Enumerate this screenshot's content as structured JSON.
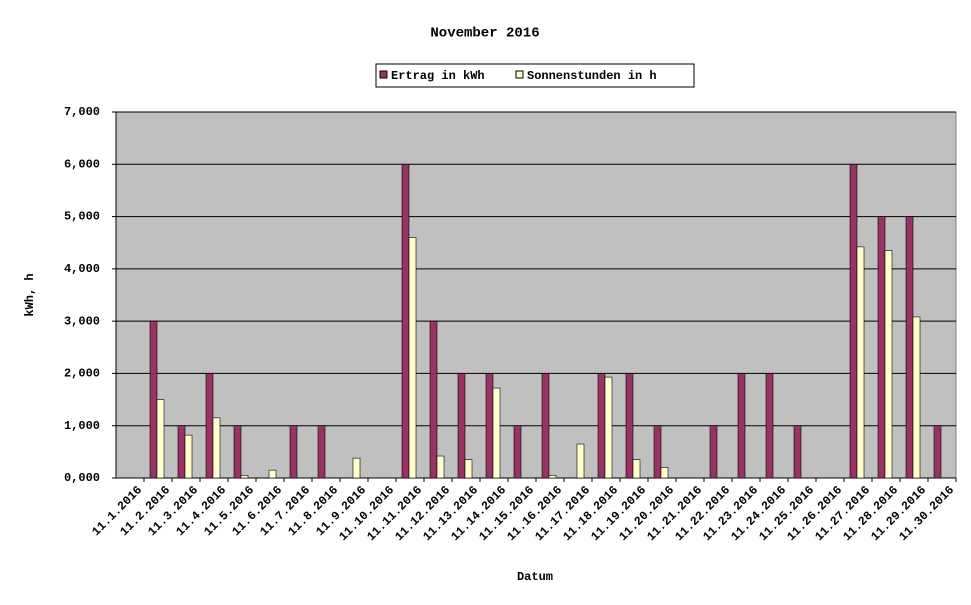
{
  "chart_data": {
    "type": "bar",
    "title": "November 2016",
    "x_label": "Datum",
    "y_label": "kWh, h",
    "categories": [
      "11.1.2016",
      "11.2.2016",
      "11.3.2016",
      "11.4.2016",
      "11.5.2016",
      "11.6.2016",
      "11.7.2016",
      "11.8.2016",
      "11.9.2016",
      "11.10.2016",
      "11.11.2016",
      "11.12.2016",
      "11.13.2016",
      "11.14.2016",
      "11.15.2016",
      "11.16.2016",
      "11.17.2016",
      "11.18.2016",
      "11.19.2016",
      "11.20.2016",
      "11.21.2016",
      "11.22.2016",
      "11.23.2016",
      "11.24.2016",
      "11.25.2016",
      "11.26.2016",
      "11.27.2016",
      "11.28.2016",
      "11.29.2016",
      "11.30.2016"
    ],
    "series": [
      {
        "name": "Ertrag in kWh",
        "color": "#993366",
        "values": [
          0,
          3,
          1,
          2,
          1,
          0,
          1,
          1,
          0,
          0,
          6,
          3,
          2,
          2,
          1,
          2,
          0,
          2,
          2,
          1,
          0,
          1,
          2,
          2,
          1,
          0,
          6,
          5,
          5,
          1
        ]
      },
      {
        "name": "Sonnenstunden in h",
        "color": "#ffffcc",
        "values": [
          0,
          1.5,
          0.82,
          1.15,
          0.05,
          0.15,
          0,
          0,
          0.38,
          0,
          4.6,
          0.42,
          0.35,
          1.72,
          0,
          0.05,
          0.65,
          1.93,
          0.35,
          0.2,
          0,
          0,
          0,
          0,
          0,
          0,
          4.42,
          4.35,
          3.08,
          0
        ]
      }
    ],
    "ylim": [
      0,
      7
    ],
    "yticks": [
      {
        "value": 0,
        "label": "0,000"
      },
      {
        "value": 1,
        "label": "1,000"
      },
      {
        "value": 2,
        "label": "2,000"
      },
      {
        "value": 3,
        "label": "3,000"
      },
      {
        "value": 4,
        "label": "4,000"
      },
      {
        "value": 5,
        "label": "5,000"
      },
      {
        "value": 6,
        "label": "6,000"
      },
      {
        "value": 7,
        "label": "7,000"
      }
    ],
    "grid": true,
    "plot_background": "#c0c0c0",
    "legend": "top"
  }
}
